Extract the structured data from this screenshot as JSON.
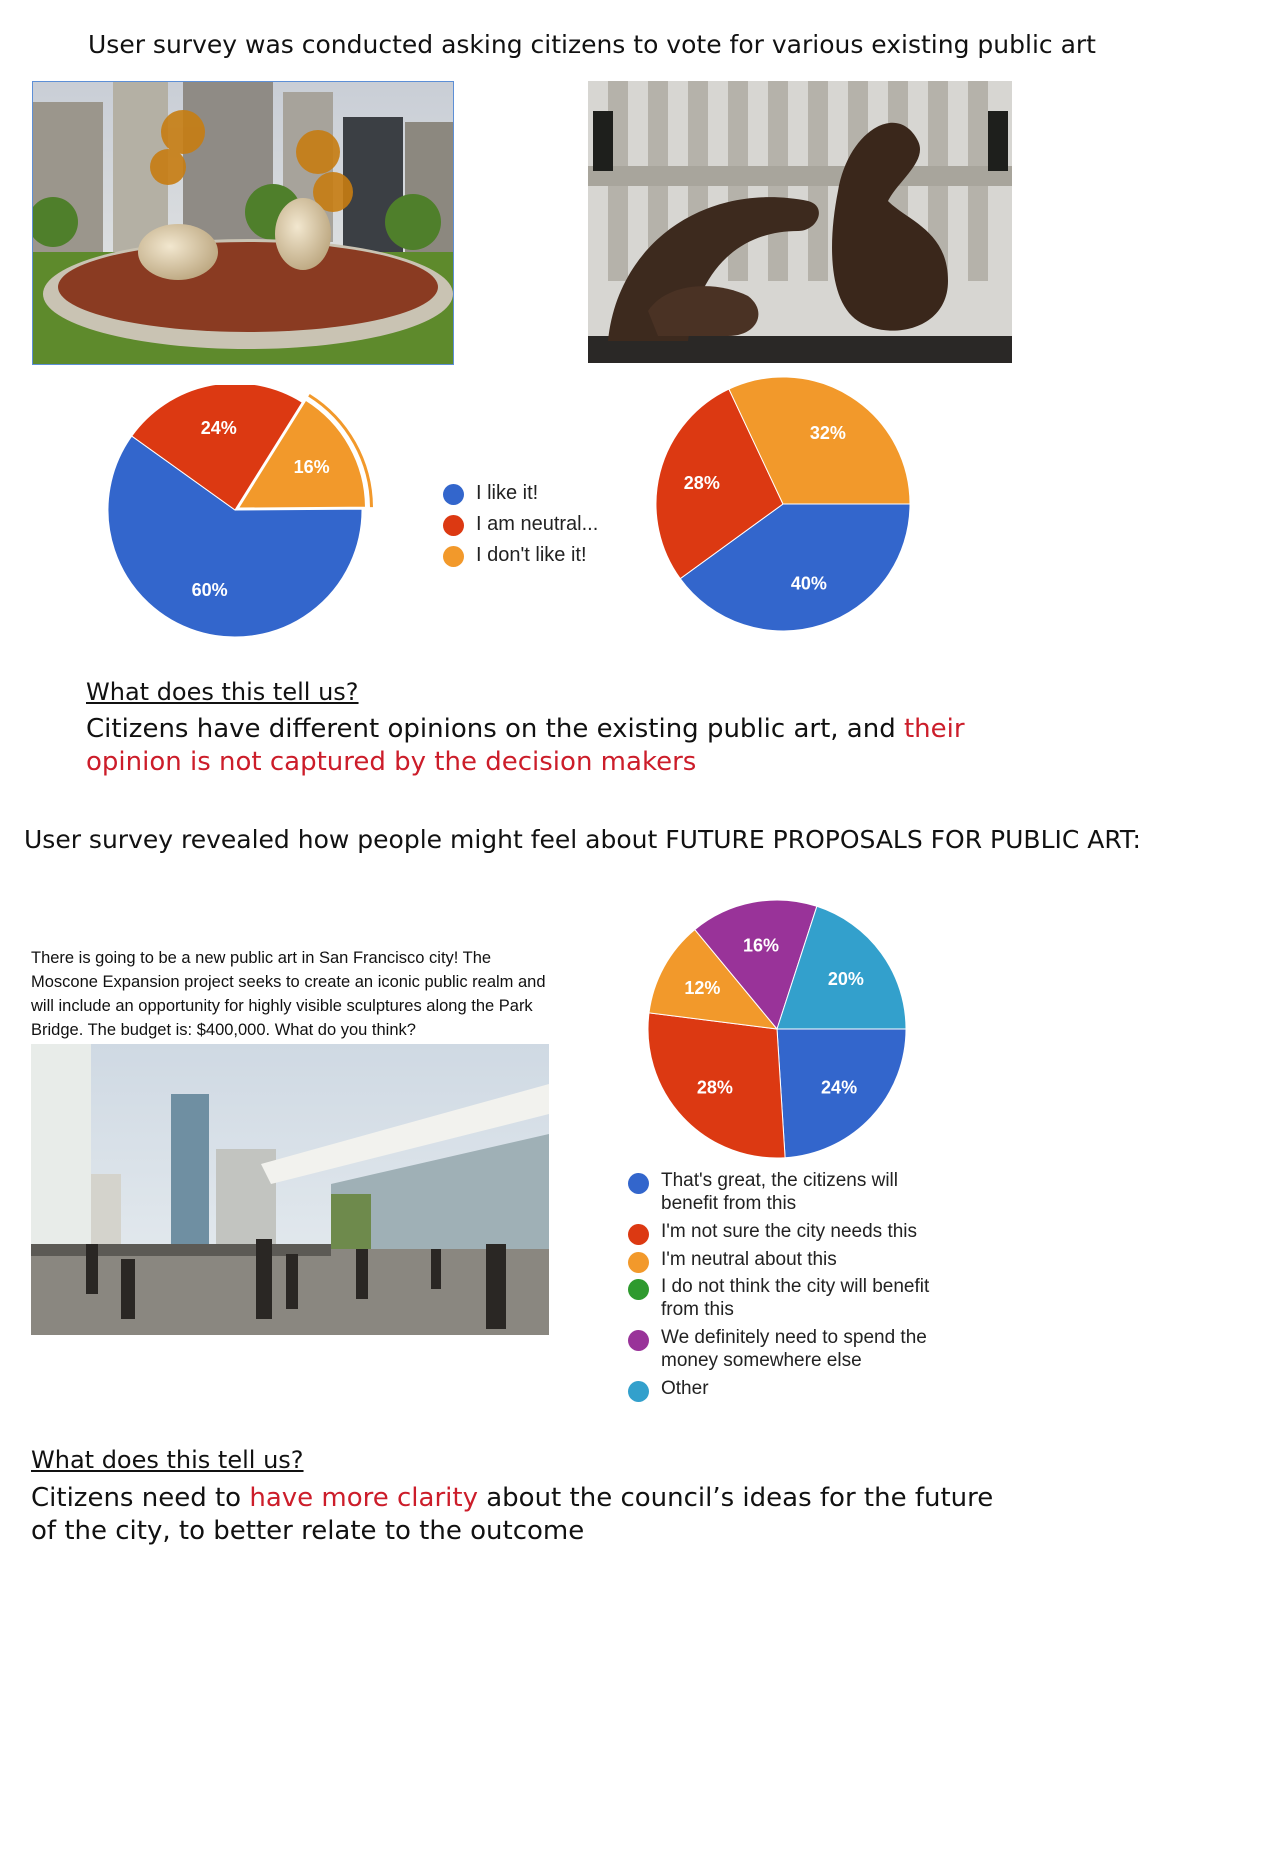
{
  "section1": {
    "heading": "User survey was conducted asking citizens to vote for various existing public art",
    "question": "What does this tell us?",
    "answer_plain": "Citizens have different opinions on the existing public art, and ",
    "answer_highlight": "their opinion is not captured by the decision makers"
  },
  "legend1": {
    "items": [
      "I like it!",
      "I am neutral...",
      "I don't like it!"
    ]
  },
  "section2": {
    "heading": "User survey revealed how people might feel about FUTURE PROPOSALS FOR PUBLIC ART:",
    "prompt": "There is going to be a new public art in San Francisco city! The Moscone Expansion project seeks to create an iconic public realm and will include an opportunity for highly visible sculptures along the Park Bridge. The budget is: $400,000. What do you think?",
    "question": "What does this tell us?",
    "answer_part1": "Citizens need to ",
    "answer_highlight": "have more clarity",
    "answer_part2": " about the council’s ideas for the future of the city, to better relate to the outcome"
  },
  "legend2": {
    "items": [
      "That's great, the citizens will benefit from this",
      "I'm not sure the city needs this",
      "I'm neutral about this",
      "I do not think the city will benefit from this",
      "We definitely need to spend the money somewhere else",
      "Other"
    ]
  },
  "colors": {
    "blue": "#3366cc",
    "red": "#dc3912",
    "orange": "#f2992b",
    "green": "#2e9a2e",
    "purple": "#993399",
    "teal": "#33a0cc",
    "highlight_text": "#cc1d2a"
  },
  "chart_data": [
    {
      "type": "pie",
      "categories": [
        "I like it!",
        "I am neutral...",
        "I don't like it!"
      ],
      "values": [
        60,
        24,
        16
      ],
      "labels": [
        "60%",
        "24%",
        "16%"
      ],
      "colors": [
        "#3366cc",
        "#dc3912",
        "#f2992b"
      ],
      "exploded": [
        false,
        false,
        true
      ]
    },
    {
      "type": "pie",
      "categories": [
        "I like it!",
        "I am neutral...",
        "I don't like it!"
      ],
      "values": [
        40,
        28,
        32
      ],
      "labels": [
        "40%",
        "28%",
        "32%"
      ],
      "colors": [
        "#3366cc",
        "#dc3912",
        "#f2992b"
      ]
    },
    {
      "type": "pie",
      "categories": [
        "That's great, the citizens will benefit from this",
        "I'm not sure the city needs this",
        "I'm neutral about this",
        "I do not think the city will benefit from this",
        "We definitely need to spend the money somewhere else",
        "Other"
      ],
      "values": [
        24,
        28,
        12,
        0,
        16,
        20
      ],
      "labels": [
        "24%",
        "28%",
        "12%",
        "",
        "16%",
        "20%"
      ],
      "colors": [
        "#3366cc",
        "#dc3912",
        "#f2992b",
        "#2e9a2e",
        "#993399",
        "#33a0cc"
      ]
    }
  ]
}
